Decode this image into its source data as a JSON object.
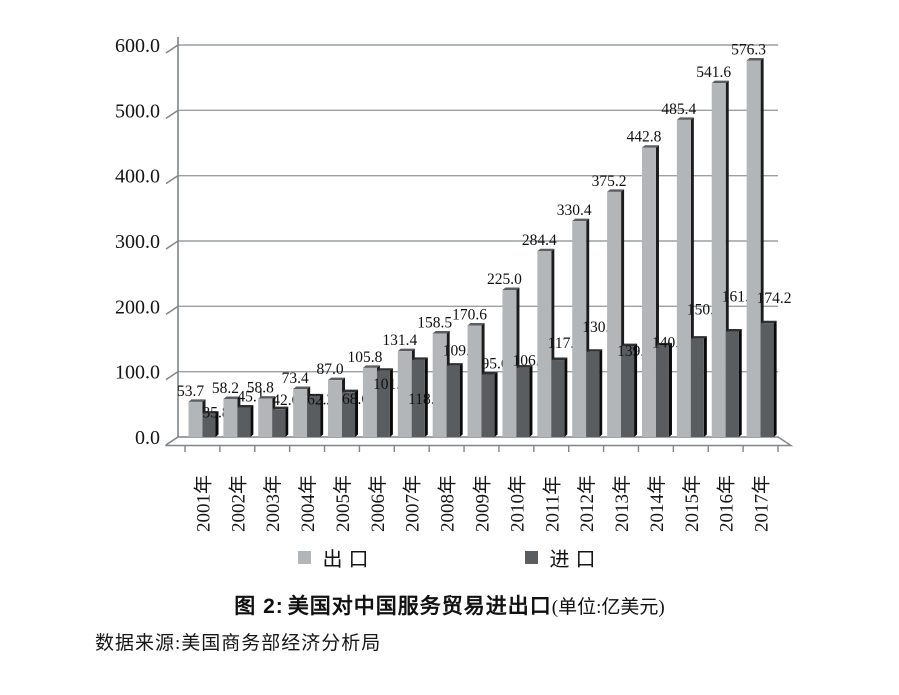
{
  "figure": {
    "caption_prefix": "图 2:",
    "caption_title": "美国对中国服务贸易进出口",
    "caption_unit": "(单位:亿美元)",
    "source": "数据来源:美国商务部经济分析局"
  },
  "chart_data": {
    "type": "bar",
    "title": "图 2:美国对中国服务贸易进出口(单位:亿美元)",
    "xlabel": "",
    "ylabel": "",
    "unit": "亿美元",
    "categories": [
      "2001年",
      "2002年",
      "2003年",
      "2004年",
      "2005年",
      "2006年",
      "2007年",
      "2008年",
      "2009年",
      "2010年",
      "2011年",
      "2012年",
      "2013年",
      "2014年",
      "2015年",
      "2016年",
      "2017年"
    ],
    "series": [
      {
        "name": "出口",
        "values": [
          53.7,
          58.2,
          58.8,
          73.4,
          87.0,
          105.8,
          131.4,
          158.5,
          170.6,
          225.0,
          284.4,
          330.4,
          375.2,
          442.8,
          485.4,
          541.6,
          576.3
        ],
        "color": "#b3b6b9",
        "side_color": "#1c1c1c",
        "top_color": "#5a5e62"
      },
      {
        "name": "进口",
        "values": [
          35.8,
          45.1,
          42.6,
          62.2,
          68.6,
          101.4,
          118.0,
          109.2,
          95.6,
          106.1,
          117.8,
          130.4,
          139.1,
          140.2,
          150.6,
          161.4,
          174.2
        ],
        "color": "#595d60",
        "side_color": "#0a0a0a",
        "top_color": "#2e3134"
      }
    ],
    "ylim": [
      0,
      600
    ],
    "ytick_step": 100,
    "ytick_labels": [
      "0.0",
      "100.0",
      "200.0",
      "300.0",
      "400.0",
      "500.0",
      "600.0"
    ],
    "grid": true,
    "value_labels": true,
    "legend_position": "bottom",
    "style_3d": true,
    "gridline_color": "#9aa0a4",
    "axis_color": "#7f8589"
  }
}
